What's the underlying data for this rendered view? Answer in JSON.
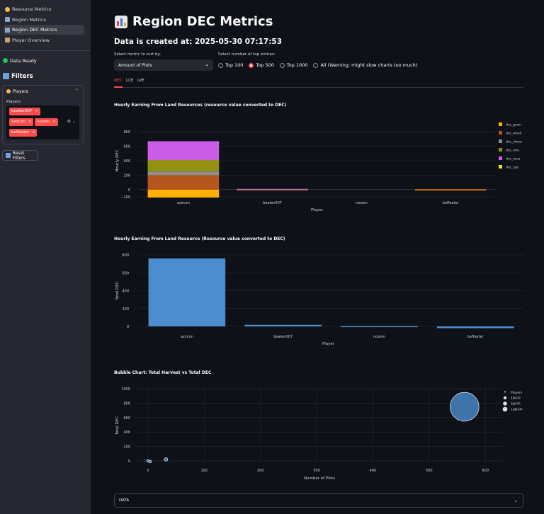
{
  "sidebar": {
    "nav": [
      {
        "label": "Resource Metrics",
        "icon": "coin-icon",
        "color": "#f5b94a",
        "active": false
      },
      {
        "label": "Region Metrics",
        "icon": "map-icon",
        "color": "#8aa7c7",
        "active": false
      },
      {
        "label": "Region DEC Metrics",
        "icon": "map-icon",
        "color": "#8aa7c7",
        "active": true
      },
      {
        "label": "Player Overview",
        "icon": "player-icon",
        "color": "#c9a26b",
        "active": false
      }
    ],
    "status": "Data Ready",
    "filters_title": "Filters",
    "players_section": "Players",
    "players_label": "Players",
    "selected_players": [
      "beaker007",
      "azircon",
      "nozem",
      "beffeater"
    ],
    "reset_label": "Reset Filters"
  },
  "main": {
    "title": "Region DEC Metrics",
    "created": "Data is created at: 2025-05-30 07:17:53",
    "metric_label": "Select metric to sort by:",
    "metric_value": "Amount of Plots",
    "top_label": "Select number of top entries:",
    "top_options": [
      "Top 100",
      "Top 500",
      "Top 1000",
      "All (Warning: might slow charts too much)"
    ],
    "top_selected": "Top 500",
    "tabs": [
      "DEC",
      "LCE",
      "LPE"
    ],
    "active_tab": "DEC",
    "data_expander": "DATA"
  },
  "colors": {
    "accent": "#ff4b4b",
    "bar": "#4c8dcf",
    "grid": "#2a2d36"
  },
  "chart_data": [
    {
      "type": "bar",
      "stacked": true,
      "title": "Hourly Earning From Land Resources (resource value converted to DEC)",
      "xlabel": "Player",
      "ylabel": "Hourly DEC",
      "categories": [
        "azircon",
        "beaker007",
        "nozem",
        "beffeater"
      ],
      "ylim": [
        -100,
        900
      ],
      "yticks": [
        -100,
        0,
        200,
        400,
        600,
        800
      ],
      "series": [
        {
          "name": "dec_grain",
          "color": "#ffb000",
          "values": [
            -110,
            -1,
            0,
            -3
          ]
        },
        {
          "name": "dec_wood",
          "color": "#b5561e",
          "values": [
            200,
            3,
            0,
            8
          ]
        },
        {
          "name": "dec_stone",
          "color": "#8f8f8f",
          "values": [
            50,
            2,
            0,
            0
          ]
        },
        {
          "name": "dec_iron",
          "color": "#939114",
          "values": [
            160,
            2,
            0,
            0
          ]
        },
        {
          "name": "dec_aura",
          "color": "#cc5de8",
          "values": [
            260,
            3,
            0,
            0
          ]
        },
        {
          "name": "dec_sps",
          "color": "#f7e01a",
          "values": [
            0,
            0,
            0,
            0
          ]
        }
      ],
      "legend": "right"
    },
    {
      "type": "bar",
      "title": "Hourly Earning From Land Resource (Resource value converted to DEC)",
      "xlabel": "Player",
      "ylabel": "Total DEC",
      "categories": [
        "azircon",
        "beaker007",
        "nozem",
        "beffeater"
      ],
      "values": [
        760,
        18,
        3,
        -20
      ],
      "ylim": [
        0,
        800
      ],
      "yticks": [
        0,
        200,
        400,
        600,
        800
      ]
    },
    {
      "type": "scatter",
      "title": "Bubble Chart: Total Harvest vs Total DEC",
      "xlabel": "Number of Plots",
      "ylabel": "Total DEC",
      "xlim": [
        -20,
        630
      ],
      "ylim": [
        -40,
        1020
      ],
      "xticks": [
        0,
        100,
        200,
        300,
        400,
        500,
        600
      ],
      "yticks": [
        0,
        200,
        400,
        600,
        800,
        1000
      ],
      "points": [
        {
          "x": 0,
          "y": 0,
          "size": 0.5
        },
        {
          "x": 4,
          "y": -10,
          "size": 1
        },
        {
          "x": 32,
          "y": 20,
          "size": 1.5
        },
        {
          "x": 563,
          "y": 750,
          "size": 12
        }
      ],
      "legend_title": "Players",
      "legend_items": [
        "1M PP",
        "5M PP",
        "10M PP"
      ]
    }
  ]
}
